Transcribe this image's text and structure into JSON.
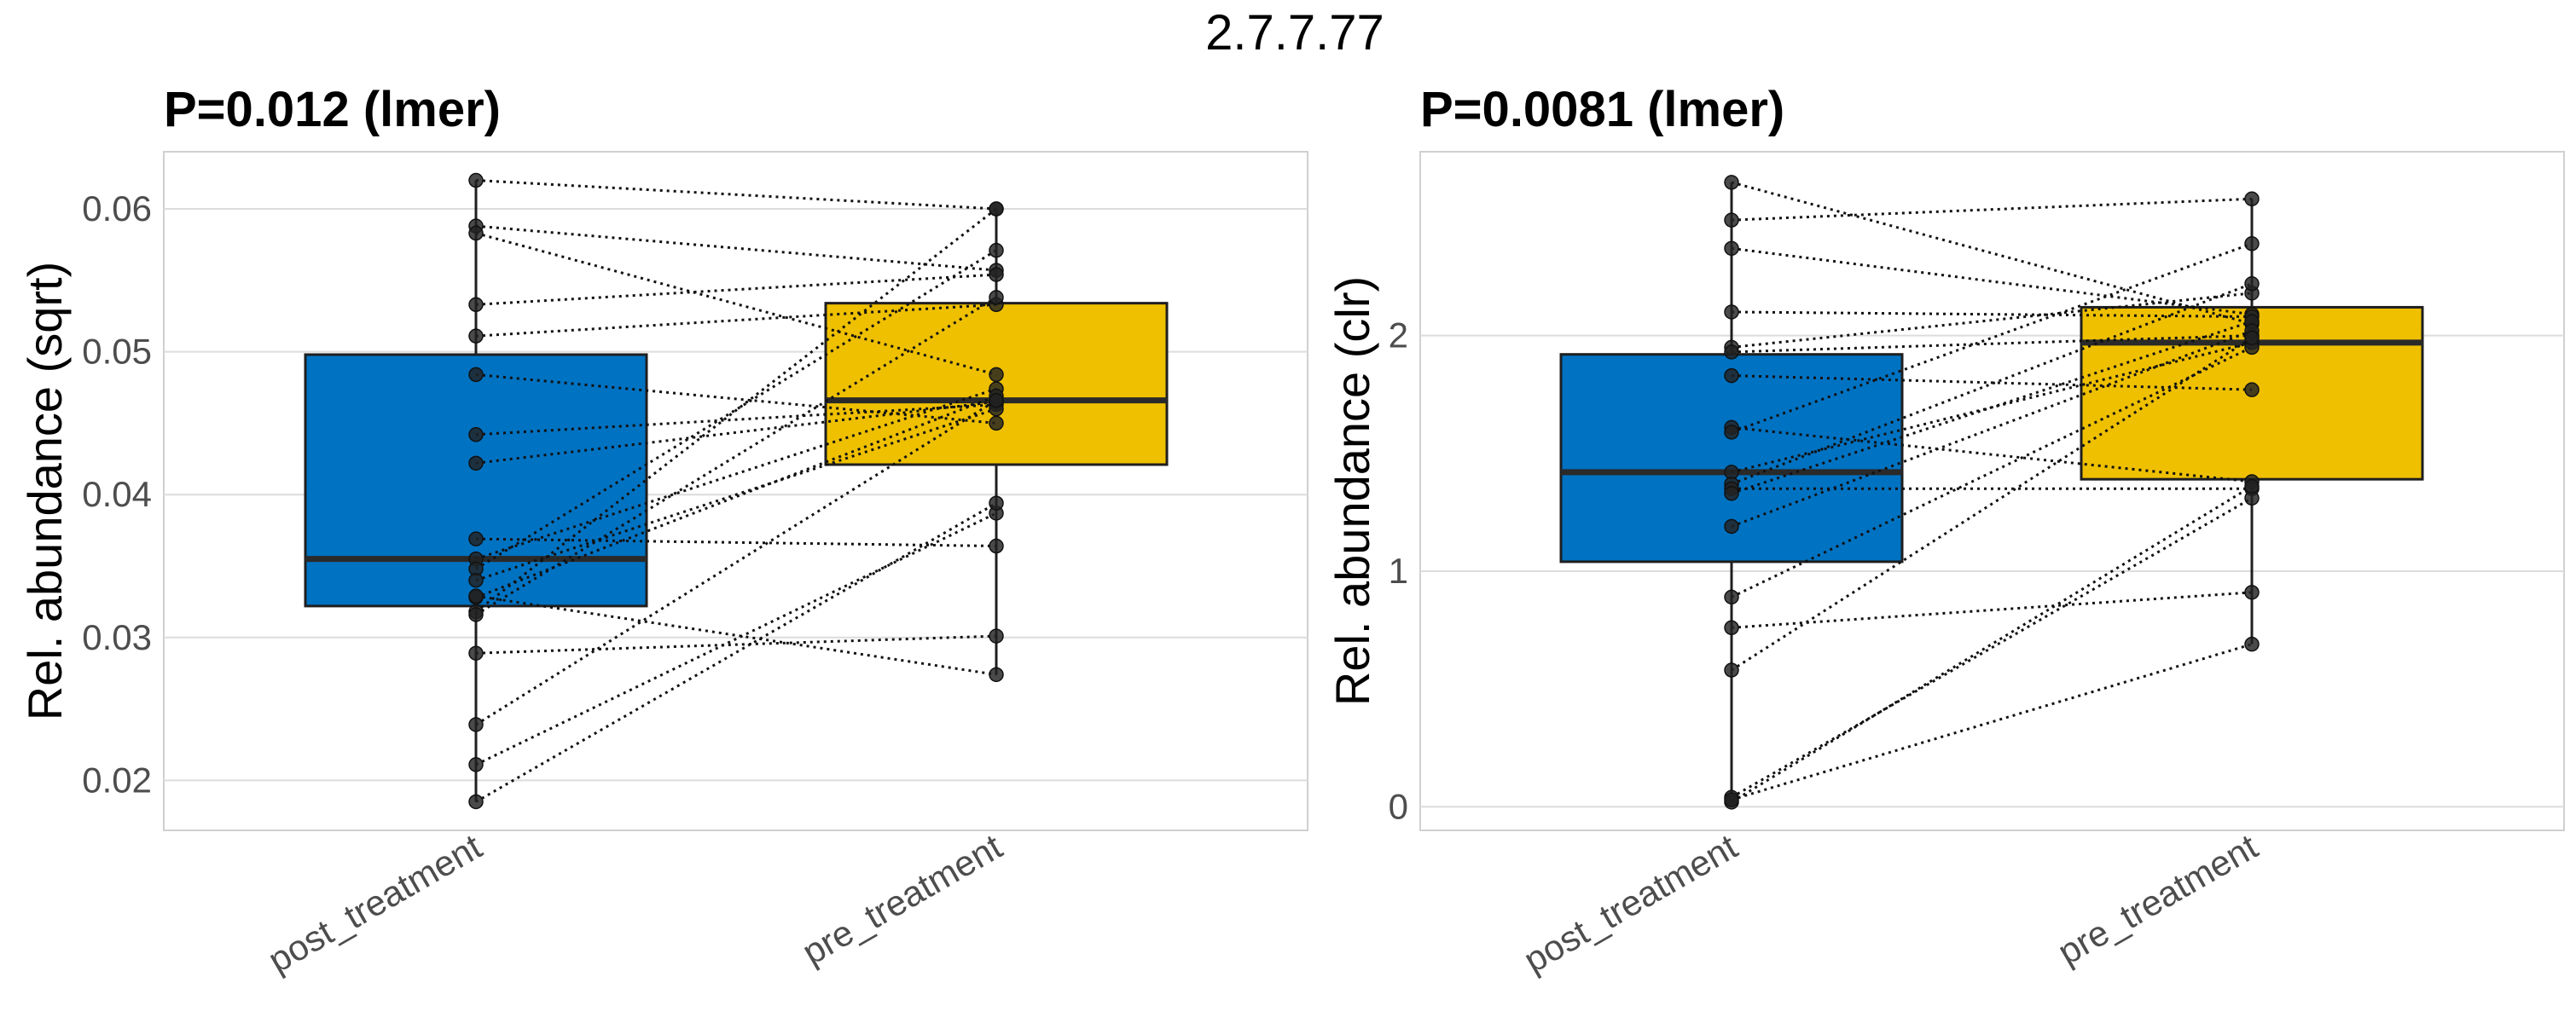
{
  "figure_title": "2.7.7.77",
  "chart_data": [
    {
      "type": "box",
      "title": "P=0.012 (lmer)",
      "ylabel": "Rel. abundance (sqrt)",
      "xlabel": "",
      "categories": [
        "post_treatment",
        "pre_treatment"
      ],
      "ylim": [
        0.0165,
        0.064
      ],
      "yticks": [
        0.02,
        0.03,
        0.04,
        0.05,
        0.06
      ],
      "ytick_labels": [
        "0.02",
        "0.03",
        "0.04",
        "0.05",
        "0.06"
      ],
      "grid": true,
      "boxes": [
        {
          "category": "post_treatment",
          "color": "#0072C2",
          "q1": 0.0322,
          "median": 0.0355,
          "q3": 0.0498,
          "whisker_low": 0.0185,
          "whisker_high": 0.062
        },
        {
          "category": "pre_treatment",
          "color": "#EFC000",
          "q1": 0.0421,
          "median": 0.0466,
          "q3": 0.0534,
          "whisker_low": 0.0274,
          "whisker_high": 0.06
        }
      ],
      "pairs": [
        [
          0.062,
          0.06
        ],
        [
          0.0588,
          0.0557
        ],
        [
          0.0583,
          0.0484
        ],
        [
          0.0533,
          0.0554
        ],
        [
          0.0511,
          0.0533
        ],
        [
          0.0484,
          0.045
        ],
        [
          0.0442,
          0.0463
        ],
        [
          0.0422,
          0.0465
        ],
        [
          0.0369,
          0.0364
        ],
        [
          0.0355,
          0.0474
        ],
        [
          0.0348,
          0.0571
        ],
        [
          0.034,
          0.046
        ],
        [
          0.0328,
          0.0469
        ],
        [
          0.0318,
          0.06
        ],
        [
          0.0316,
          0.0538
        ],
        [
          0.0289,
          0.0301
        ],
        [
          0.0239,
          0.0466
        ],
        [
          0.0211,
          0.0387
        ],
        [
          0.0185,
          0.0394
        ],
        [
          0.0329,
          0.0274
        ]
      ]
    },
    {
      "type": "box",
      "title": "P=0.0081 (lmer)",
      "ylabel": "Rel. abundance (clr)",
      "xlabel": "",
      "categories": [
        "post_treatment",
        "pre_treatment"
      ],
      "ylim": [
        -0.1,
        2.78
      ],
      "yticks": [
        0,
        1,
        2
      ],
      "ytick_labels": [
        "0",
        "1",
        "2"
      ],
      "grid": true,
      "boxes": [
        {
          "category": "post_treatment",
          "color": "#0072C2",
          "q1": 1.04,
          "median": 1.42,
          "q3": 1.92,
          "whisker_low": 0.02,
          "whisker_high": 2.65
        },
        {
          "category": "pre_treatment",
          "color": "#EFC000",
          "q1": 1.39,
          "median": 1.97,
          "q3": 2.12,
          "whisker_low": 0.69,
          "whisker_high": 2.58
        }
      ],
      "pairs": [
        [
          2.65,
          2.05
        ],
        [
          2.49,
          2.58
        ],
        [
          2.37,
          2.09
        ],
        [
          2.1,
          2.08
        ],
        [
          1.95,
          2.18
        ],
        [
          1.93,
          2.0
        ],
        [
          1.83,
          1.77
        ],
        [
          1.61,
          1.38
        ],
        [
          1.59,
          2.39
        ],
        [
          1.42,
          1.97
        ],
        [
          1.37,
          2.22
        ],
        [
          1.35,
          1.35
        ],
        [
          1.33,
          2.06
        ],
        [
          1.19,
          2.02
        ],
        [
          0.89,
          1.95
        ],
        [
          0.76,
          0.91
        ],
        [
          0.58,
          1.99
        ],
        [
          0.04,
          1.31
        ],
        [
          0.02,
          1.36
        ],
        [
          0.03,
          0.69
        ]
      ]
    }
  ]
}
